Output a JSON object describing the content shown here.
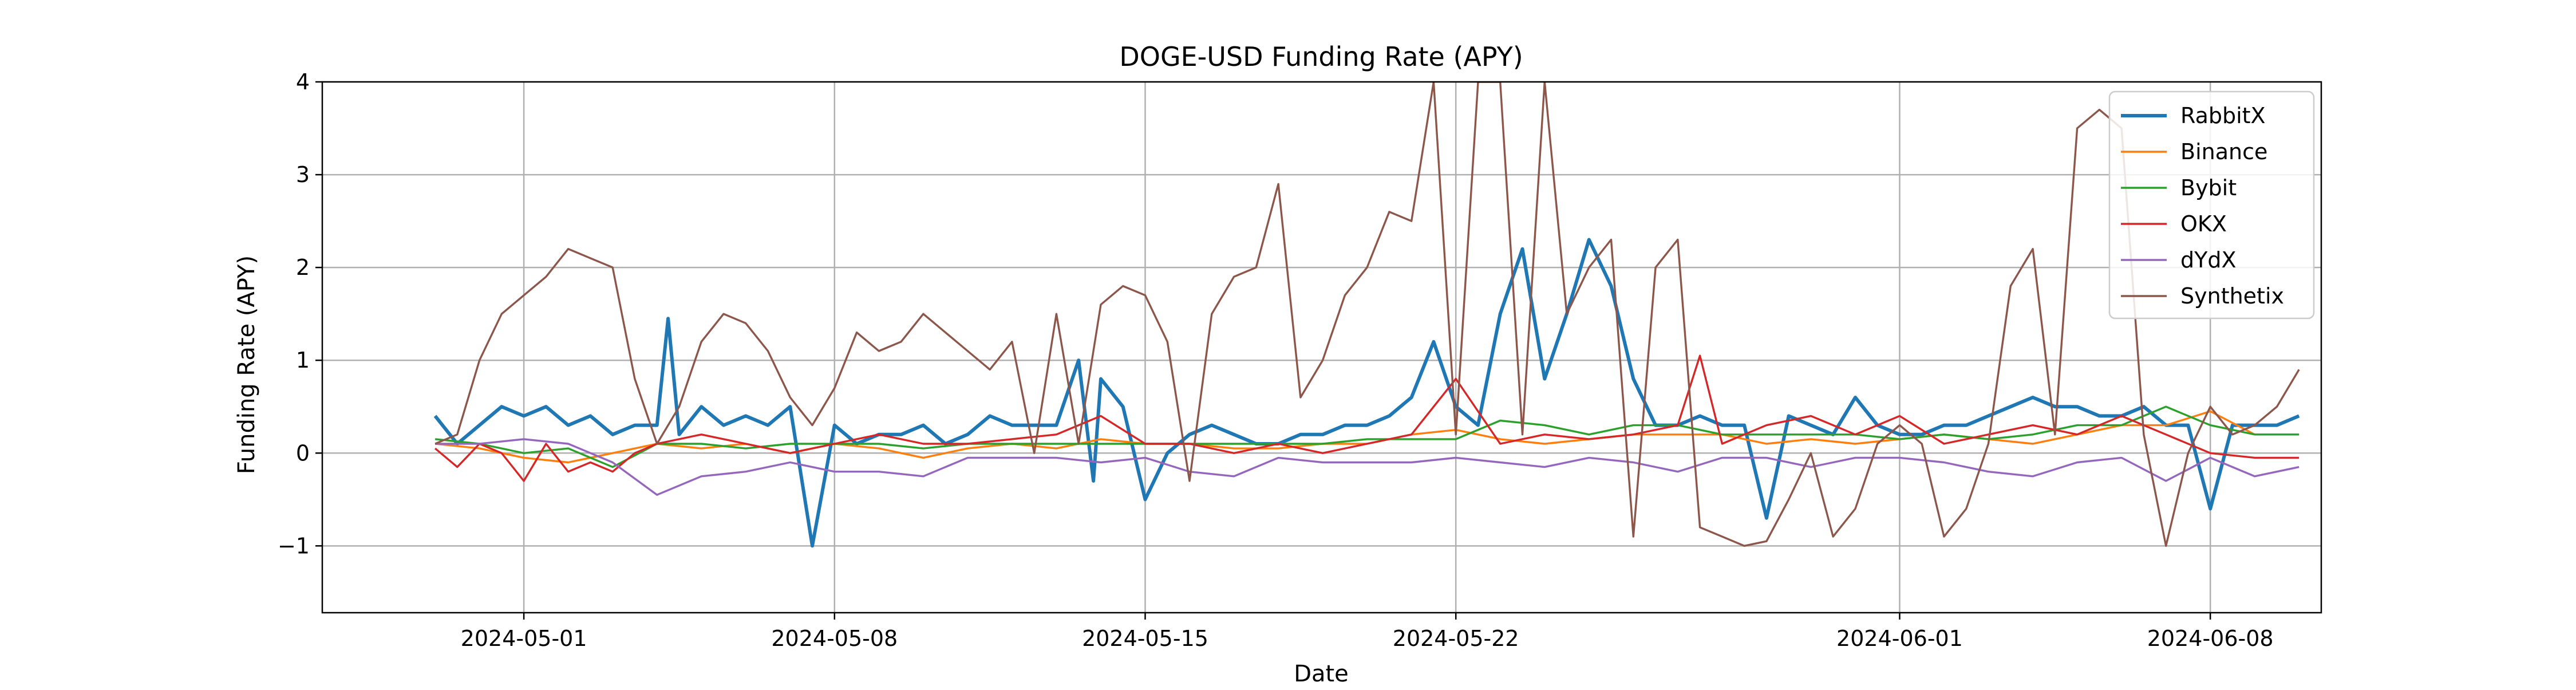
{
  "chart_data": {
    "type": "line",
    "title": "DOGE-USD Funding Rate (APY)",
    "xlabel": "Date",
    "ylabel": "Funding Rate (APY)",
    "xlim": [
      "2024-04-26T11:00",
      "2024-06-10T12:00"
    ],
    "ylim": [
      -1.72,
      4.0
    ],
    "x_ticks": [
      "2024-05-01",
      "2024-05-08",
      "2024-05-15",
      "2024-05-22",
      "2024-06-01",
      "2024-06-08"
    ],
    "y_ticks": [
      -1,
      0,
      1,
      2,
      3,
      4
    ],
    "grid": true,
    "legend_position": "upper-right",
    "series": [
      {
        "name": "RabbitX",
        "color": "#1f77b4",
        "x": [
          "2024-04-29",
          "2024-04-29T12:00",
          "2024-04-30",
          "2024-04-30T12:00",
          "2024-05-01",
          "2024-05-01T12:00",
          "2024-05-02",
          "2024-05-02T12:00",
          "2024-05-03",
          "2024-05-03T12:00",
          "2024-05-04",
          "2024-05-04T06:00",
          "2024-05-04T12:00",
          "2024-05-05",
          "2024-05-05T12:00",
          "2024-05-06",
          "2024-05-06T12:00",
          "2024-05-07",
          "2024-05-07T12:00",
          "2024-05-08",
          "2024-05-08T12:00",
          "2024-05-09",
          "2024-05-09T12:00",
          "2024-05-10",
          "2024-05-10T12:00",
          "2024-05-11",
          "2024-05-11T12:00",
          "2024-05-12",
          "2024-05-12T12:00",
          "2024-05-13",
          "2024-05-13T12:00",
          "2024-05-13T20:00",
          "2024-05-14",
          "2024-05-14T12:00",
          "2024-05-15",
          "2024-05-15T12:00",
          "2024-05-16",
          "2024-05-16T12:00",
          "2024-05-17",
          "2024-05-17T12:00",
          "2024-05-18",
          "2024-05-18T12:00",
          "2024-05-19",
          "2024-05-19T12:00",
          "2024-05-20",
          "2024-05-20T12:00",
          "2024-05-21",
          "2024-05-21T12:00",
          "2024-05-22",
          "2024-05-22T12:00",
          "2024-05-23",
          "2024-05-23T12:00",
          "2024-05-24",
          "2024-05-24T12:00",
          "2024-05-25",
          "2024-05-25T12:00",
          "2024-05-26",
          "2024-05-26T12:00",
          "2024-05-27",
          "2024-05-27T12:00",
          "2024-05-28",
          "2024-05-28T12:00",
          "2024-05-29",
          "2024-05-29T12:00",
          "2024-05-30",
          "2024-05-30T12:00",
          "2024-05-31",
          "2024-05-31T12:00",
          "2024-06-01",
          "2024-06-01T12:00",
          "2024-06-02",
          "2024-06-02T12:00",
          "2024-06-03",
          "2024-06-03T12:00",
          "2024-06-04",
          "2024-06-04T12:00",
          "2024-06-05",
          "2024-06-05T12:00",
          "2024-06-06",
          "2024-06-06T12:00",
          "2024-06-07",
          "2024-06-07T12:00",
          "2024-06-08",
          "2024-06-08T12:00",
          "2024-06-09",
          "2024-06-09T12:00",
          "2024-06-10"
        ],
        "y": [
          0.4,
          0.1,
          0.3,
          0.5,
          0.4,
          0.5,
          0.3,
          0.4,
          0.2,
          0.3,
          0.3,
          1.45,
          0.2,
          0.5,
          0.3,
          0.4,
          0.3,
          0.5,
          -1.0,
          0.3,
          0.1,
          0.2,
          0.2,
          0.3,
          0.1,
          0.2,
          0.4,
          0.3,
          0.3,
          0.3,
          1.0,
          -0.3,
          0.8,
          0.5,
          -0.5,
          0.0,
          0.2,
          0.3,
          0.2,
          0.1,
          0.1,
          0.2,
          0.2,
          0.3,
          0.3,
          0.4,
          0.6,
          1.2,
          0.5,
          0.3,
          1.5,
          2.2,
          0.8,
          1.5,
          2.3,
          1.8,
          0.8,
          0.3,
          0.3,
          0.4,
          0.3,
          0.3,
          -0.7,
          0.4,
          0.3,
          0.2,
          0.6,
          0.3,
          0.2,
          0.2,
          0.3,
          0.3,
          0.4,
          0.5,
          0.6,
          0.5,
          0.5,
          0.4,
          0.4,
          0.5,
          0.3,
          0.3,
          -0.6,
          0.3,
          0.3,
          0.3,
          0.4
        ]
      },
      {
        "name": "Binance",
        "color": "#ff7f0e",
        "x": [
          "2024-04-29",
          "2024-04-30",
          "2024-05-01",
          "2024-05-02",
          "2024-05-03",
          "2024-05-04",
          "2024-05-05",
          "2024-05-06",
          "2024-05-07",
          "2024-05-08",
          "2024-05-09",
          "2024-05-10",
          "2024-05-11",
          "2024-05-12",
          "2024-05-13",
          "2024-05-14",
          "2024-05-15",
          "2024-05-16",
          "2024-05-17",
          "2024-05-18",
          "2024-05-19",
          "2024-05-20",
          "2024-05-21",
          "2024-05-22",
          "2024-05-23",
          "2024-05-24",
          "2024-05-25",
          "2024-05-26",
          "2024-05-27",
          "2024-05-28",
          "2024-05-29",
          "2024-05-30",
          "2024-05-31",
          "2024-06-01",
          "2024-06-02",
          "2024-06-03",
          "2024-06-04",
          "2024-06-05",
          "2024-06-06",
          "2024-06-07",
          "2024-06-08",
          "2024-06-09",
          "2024-06-10"
        ],
        "y": [
          0.1,
          0.05,
          -0.05,
          -0.1,
          0.0,
          0.1,
          0.05,
          0.1,
          0.0,
          0.1,
          0.05,
          -0.05,
          0.05,
          0.1,
          0.05,
          0.15,
          0.1,
          0.1,
          0.05,
          0.05,
          0.1,
          0.1,
          0.2,
          0.25,
          0.15,
          0.1,
          0.15,
          0.2,
          0.2,
          0.2,
          0.1,
          0.15,
          0.1,
          0.15,
          0.2,
          0.15,
          0.1,
          0.2,
          0.3,
          0.3,
          0.45,
          0.2,
          0.2
        ]
      },
      {
        "name": "Bybit",
        "color": "#2ca02c",
        "x": [
          "2024-04-29",
          "2024-04-30",
          "2024-05-01",
          "2024-05-02",
          "2024-05-03",
          "2024-05-04",
          "2024-05-05",
          "2024-05-06",
          "2024-05-07",
          "2024-05-08",
          "2024-05-09",
          "2024-05-10",
          "2024-05-11",
          "2024-05-12",
          "2024-05-13",
          "2024-05-14",
          "2024-05-15",
          "2024-05-16",
          "2024-05-17",
          "2024-05-18",
          "2024-05-19",
          "2024-05-20",
          "2024-05-21",
          "2024-05-22",
          "2024-05-23",
          "2024-05-24",
          "2024-05-25",
          "2024-05-26",
          "2024-05-27",
          "2024-05-28",
          "2024-05-29",
          "2024-05-30",
          "2024-05-31",
          "2024-06-01",
          "2024-06-02",
          "2024-06-03",
          "2024-06-04",
          "2024-06-05",
          "2024-06-06",
          "2024-06-07",
          "2024-06-08",
          "2024-06-09",
          "2024-06-10"
        ],
        "y": [
          0.15,
          0.1,
          0.0,
          0.05,
          -0.15,
          0.1,
          0.1,
          0.05,
          0.1,
          0.1,
          0.1,
          0.05,
          0.1,
          0.1,
          0.1,
          0.1,
          0.1,
          0.1,
          0.1,
          0.1,
          0.1,
          0.15,
          0.15,
          0.15,
          0.35,
          0.3,
          0.2,
          0.3,
          0.3,
          0.2,
          0.2,
          0.2,
          0.2,
          0.15,
          0.2,
          0.15,
          0.2,
          0.3,
          0.3,
          0.5,
          0.3,
          0.2,
          0.2
        ]
      },
      {
        "name": "OKX",
        "color": "#d62728",
        "x": [
          "2024-04-29",
          "2024-04-29T12:00",
          "2024-04-30",
          "2024-04-30T12:00",
          "2024-05-01",
          "2024-05-01T12:00",
          "2024-05-02",
          "2024-05-02T12:00",
          "2024-05-03",
          "2024-05-03T12:00",
          "2024-05-04",
          "2024-05-05",
          "2024-05-06",
          "2024-05-07",
          "2024-05-08",
          "2024-05-09",
          "2024-05-10",
          "2024-05-11",
          "2024-05-12",
          "2024-05-13",
          "2024-05-14",
          "2024-05-15",
          "2024-05-16",
          "2024-05-17",
          "2024-05-18",
          "2024-05-19",
          "2024-05-20",
          "2024-05-21",
          "2024-05-22",
          "2024-05-23",
          "2024-05-24",
          "2024-05-25",
          "2024-05-26",
          "2024-05-27",
          "2024-05-27T12:00",
          "2024-05-28",
          "2024-05-29",
          "2024-05-30",
          "2024-05-31",
          "2024-06-01",
          "2024-06-02",
          "2024-06-03",
          "2024-06-04",
          "2024-06-05",
          "2024-06-06",
          "2024-06-07",
          "2024-06-08",
          "2024-06-09",
          "2024-06-10"
        ],
        "y": [
          0.05,
          -0.15,
          0.1,
          0.0,
          -0.3,
          0.1,
          -0.2,
          -0.1,
          -0.2,
          0.0,
          0.1,
          0.2,
          0.1,
          0.0,
          0.1,
          0.2,
          0.1,
          0.1,
          0.15,
          0.2,
          0.4,
          0.1,
          0.1,
          0.0,
          0.1,
          0.0,
          0.1,
          0.2,
          0.8,
          0.1,
          0.2,
          0.15,
          0.2,
          0.3,
          1.05,
          0.1,
          0.3,
          0.4,
          0.2,
          0.4,
          0.1,
          0.2,
          0.3,
          0.2,
          0.4,
          0.2,
          0.0,
          -0.05,
          -0.05
        ]
      },
      {
        "name": "dYdX",
        "color": "#9467bd",
        "x": [
          "2024-04-29",
          "2024-04-30",
          "2024-05-01",
          "2024-05-02",
          "2024-05-03",
          "2024-05-04",
          "2024-05-05",
          "2024-05-06",
          "2024-05-07",
          "2024-05-08",
          "2024-05-09",
          "2024-05-10",
          "2024-05-11",
          "2024-05-12",
          "2024-05-13",
          "2024-05-14",
          "2024-05-15",
          "2024-05-16",
          "2024-05-17",
          "2024-05-18",
          "2024-05-19",
          "2024-05-20",
          "2024-05-21",
          "2024-05-22",
          "2024-05-23",
          "2024-05-24",
          "2024-05-25",
          "2024-05-26",
          "2024-05-27",
          "2024-05-28",
          "2024-05-29",
          "2024-05-30",
          "2024-05-31",
          "2024-06-01",
          "2024-06-02",
          "2024-06-03",
          "2024-06-04",
          "2024-06-05",
          "2024-06-06",
          "2024-06-07",
          "2024-06-08",
          "2024-06-09",
          "2024-06-10"
        ],
        "y": [
          0.1,
          0.1,
          0.15,
          0.1,
          -0.1,
          -0.45,
          -0.25,
          -0.2,
          -0.1,
          -0.2,
          -0.2,
          -0.25,
          -0.05,
          -0.05,
          -0.05,
          -0.1,
          -0.05,
          -0.2,
          -0.25,
          -0.05,
          -0.1,
          -0.1,
          -0.1,
          -0.05,
          -0.1,
          -0.15,
          -0.05,
          -0.1,
          -0.2,
          -0.05,
          -0.05,
          -0.15,
          -0.05,
          -0.05,
          -0.1,
          -0.2,
          -0.25,
          -0.1,
          -0.05,
          -0.3,
          -0.05,
          -0.25,
          -0.15
        ]
      },
      {
        "name": "Synthetix",
        "color": "#8c564b",
        "x": [
          "2024-04-29",
          "2024-04-29T12:00",
          "2024-04-30",
          "2024-04-30T12:00",
          "2024-05-01",
          "2024-05-01T12:00",
          "2024-05-02",
          "2024-05-02T12:00",
          "2024-05-03",
          "2024-05-03T12:00",
          "2024-05-04",
          "2024-05-04T12:00",
          "2024-05-05",
          "2024-05-05T12:00",
          "2024-05-06",
          "2024-05-06T12:00",
          "2024-05-07",
          "2024-05-07T12:00",
          "2024-05-08",
          "2024-05-08T12:00",
          "2024-05-09",
          "2024-05-09T12:00",
          "2024-05-10",
          "2024-05-10T12:00",
          "2024-05-11",
          "2024-05-11T12:00",
          "2024-05-12",
          "2024-05-12T12:00",
          "2024-05-13",
          "2024-05-13T12:00",
          "2024-05-14",
          "2024-05-14T12:00",
          "2024-05-15",
          "2024-05-15T12:00",
          "2024-05-16",
          "2024-05-16T12:00",
          "2024-05-17",
          "2024-05-17T12:00",
          "2024-05-18",
          "2024-05-18T12:00",
          "2024-05-19",
          "2024-05-19T12:00",
          "2024-05-20",
          "2024-05-20T12:00",
          "2024-05-21",
          "2024-05-21T12:00",
          "2024-05-22",
          "2024-05-22T12:00",
          "2024-05-23",
          "2024-05-23T12:00",
          "2024-05-24",
          "2024-05-24T12:00",
          "2024-05-25",
          "2024-05-25T12:00",
          "2024-05-26",
          "2024-05-26T12:00",
          "2024-05-27",
          "2024-05-27T12:00",
          "2024-05-28",
          "2024-05-28T12:00",
          "2024-05-29",
          "2024-05-29T12:00",
          "2024-05-30",
          "2024-05-30T12:00",
          "2024-05-31",
          "2024-05-31T12:00",
          "2024-06-01",
          "2024-06-01T12:00",
          "2024-06-02",
          "2024-06-02T12:00",
          "2024-06-03",
          "2024-06-03T12:00",
          "2024-06-04",
          "2024-06-04T12:00",
          "2024-06-05",
          "2024-06-05T12:00",
          "2024-06-06",
          "2024-06-06T12:00",
          "2024-06-07",
          "2024-06-07T12:00",
          "2024-06-08",
          "2024-06-08T12:00",
          "2024-06-09",
          "2024-06-09T12:00",
          "2024-06-10"
        ],
        "y": [
          0.1,
          0.2,
          1.0,
          1.5,
          1.7,
          1.9,
          2.2,
          2.1,
          2.0,
          0.8,
          0.1,
          0.5,
          1.2,
          1.5,
          1.4,
          1.1,
          0.6,
          0.3,
          0.7,
          1.3,
          1.1,
          1.2,
          1.5,
          1.3,
          1.1,
          0.9,
          1.2,
          0.0,
          1.5,
          0.1,
          1.6,
          1.8,
          1.7,
          1.2,
          -0.3,
          1.5,
          1.9,
          2.0,
          2.9,
          0.6,
          1.0,
          1.7,
          2.0,
          2.6,
          2.5,
          4.0,
          0.2,
          4.0,
          4.0,
          0.2,
          4.0,
          1.5,
          2.0,
          2.3,
          -0.9,
          2.0,
          2.3,
          -0.8,
          -0.9,
          -1.0,
          -0.95,
          -0.5,
          0.0,
          -0.9,
          -0.6,
          0.1,
          0.3,
          0.1,
          -0.9,
          -0.6,
          0.1,
          1.8,
          2.2,
          0.2,
          3.5,
          3.7,
          3.5,
          0.2,
          -1.0,
          0.0,
          0.5,
          0.2,
          0.3,
          0.5,
          0.9
        ]
      }
    ]
  }
}
